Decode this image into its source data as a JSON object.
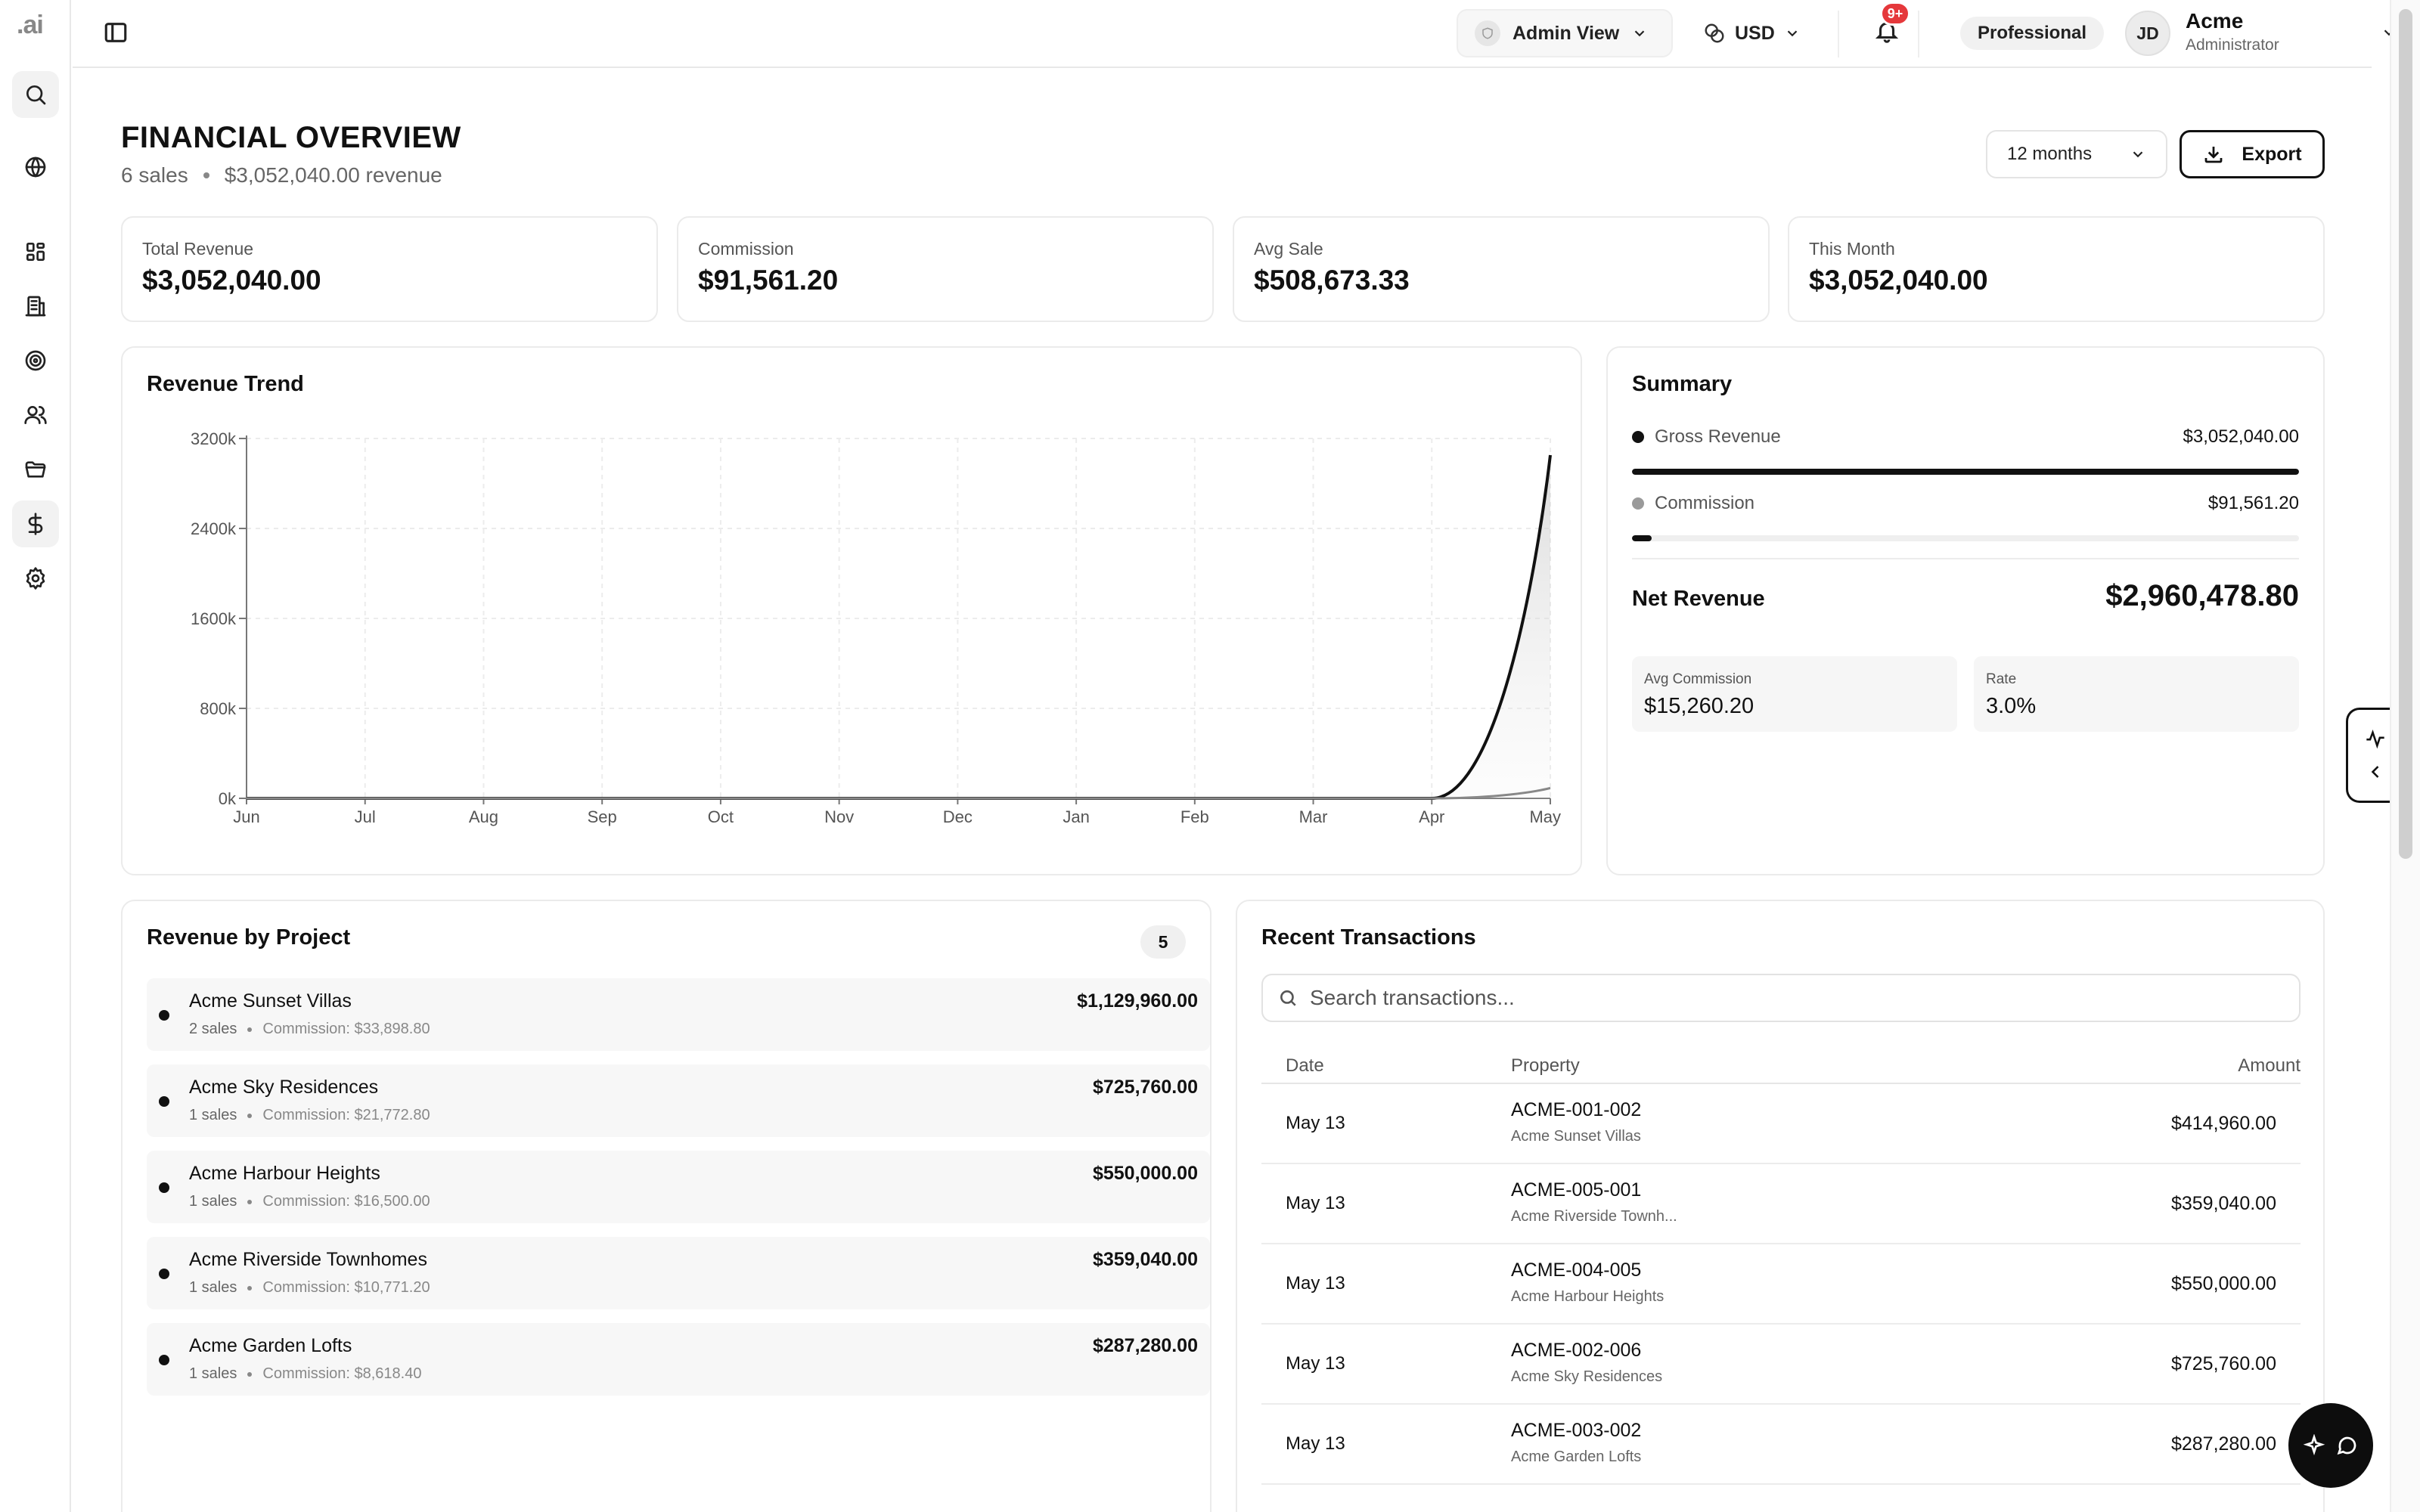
{
  "app": {
    "logo": ".ai"
  },
  "rail": {
    "icons": [
      "search-icon",
      "globe-icon",
      "dashboard-icon",
      "building-icon",
      "target-icon",
      "users-icon",
      "folder-icon",
      "dollar-icon",
      "gear-icon"
    ]
  },
  "topbar": {
    "view_label": "Admin View",
    "currency": "USD",
    "notifications_badge": "9+",
    "plan": "Professional",
    "avatar_initials": "JD",
    "user_name": "Acme",
    "user_role": "Administrator"
  },
  "header": {
    "title": "FINANCIAL OVERVIEW",
    "sales_count": "6 sales",
    "revenue_summary": "$3,052,040.00 revenue",
    "period": "12 months",
    "export_label": "Export"
  },
  "kpis": [
    {
      "label": "Total Revenue",
      "value": "$3,052,040.00"
    },
    {
      "label": "Commission",
      "value": "$91,561.20"
    },
    {
      "label": "Avg Sale",
      "value": "$508,673.33"
    },
    {
      "label": "This Month",
      "value": "$3,052,040.00"
    }
  ],
  "trend": {
    "title": "Revenue Trend"
  },
  "chart_data": {
    "type": "area",
    "title": "Revenue Trend",
    "xlabel": "",
    "ylabel": "",
    "categories": [
      "Jun",
      "Jul",
      "Aug",
      "Sep",
      "Oct",
      "Nov",
      "Dec",
      "Jan",
      "Feb",
      "Mar",
      "Apr",
      "May"
    ],
    "ylim": [
      0,
      3200000
    ],
    "yticks": [
      0,
      800000,
      1600000,
      2400000,
      3200000
    ],
    "ytick_labels": [
      "0k",
      "800k",
      "1600k",
      "2400k",
      "3200k"
    ],
    "grid": true,
    "series": [
      {
        "values": [
          0,
          0,
          0,
          0,
          0,
          0,
          0,
          0,
          0,
          0,
          0,
          3052040
        ],
        "color": "#111111"
      },
      {
        "values": [
          0,
          0,
          0,
          0,
          0,
          0,
          0,
          0,
          0,
          0,
          0,
          91561.2
        ],
        "color": "#888888"
      }
    ]
  },
  "summary": {
    "title": "Summary",
    "gross_label": "Gross Revenue",
    "gross_value": "$3,052,040.00",
    "gross_fraction": 1.0,
    "gross_color": "#111111",
    "commission_label": "Commission",
    "commission_value": "$91,561.20",
    "commission_fraction": 0.03,
    "commission_color": "#9a9a9a",
    "net_label": "Net Revenue",
    "net_value": "$2,960,478.80",
    "avg_commission_label": "Avg Commission",
    "avg_commission_value": "$15,260.20",
    "rate_label": "Rate",
    "rate_value": "3.0%"
  },
  "projects": {
    "title": "Revenue by Project",
    "count": "5",
    "items": [
      {
        "name": "Acme Sunset Villas",
        "sales": "2 sales",
        "commission": "Commission: $33,898.80",
        "value": "$1,129,960.00"
      },
      {
        "name": "Acme Sky Residences",
        "sales": "1 sales",
        "commission": "Commission: $21,772.80",
        "value": "$725,760.00"
      },
      {
        "name": "Acme Harbour Heights",
        "sales": "1 sales",
        "commission": "Commission: $16,500.00",
        "value": "$550,000.00"
      },
      {
        "name": "Acme Riverside Townhomes",
        "sales": "1 sales",
        "commission": "Commission: $10,771.20",
        "value": "$359,040.00"
      },
      {
        "name": "Acme Garden Lofts",
        "sales": "1 sales",
        "commission": "Commission: $8,618.40",
        "value": "$287,280.00"
      }
    ]
  },
  "transactions": {
    "title": "Recent Transactions",
    "search_placeholder": "Search transactions...",
    "columns": {
      "date": "Date",
      "property": "Property",
      "amount": "Amount"
    },
    "rows": [
      {
        "date": "May 13",
        "code": "ACME-001-002",
        "project": "Acme Sunset Villas",
        "amount": "$414,960.00"
      },
      {
        "date": "May 13",
        "code": "ACME-005-001",
        "project": "Acme Riverside Townh...",
        "amount": "$359,040.00"
      },
      {
        "date": "May 13",
        "code": "ACME-004-005",
        "project": "Acme Harbour Heights",
        "amount": "$550,000.00"
      },
      {
        "date": "May 13",
        "code": "ACME-002-006",
        "project": "Acme Sky Residences",
        "amount": "$725,760.00"
      },
      {
        "date": "May 13",
        "code": "ACME-003-002",
        "project": "Acme Garden Lofts",
        "amount": "$287,280.00"
      }
    ]
  }
}
